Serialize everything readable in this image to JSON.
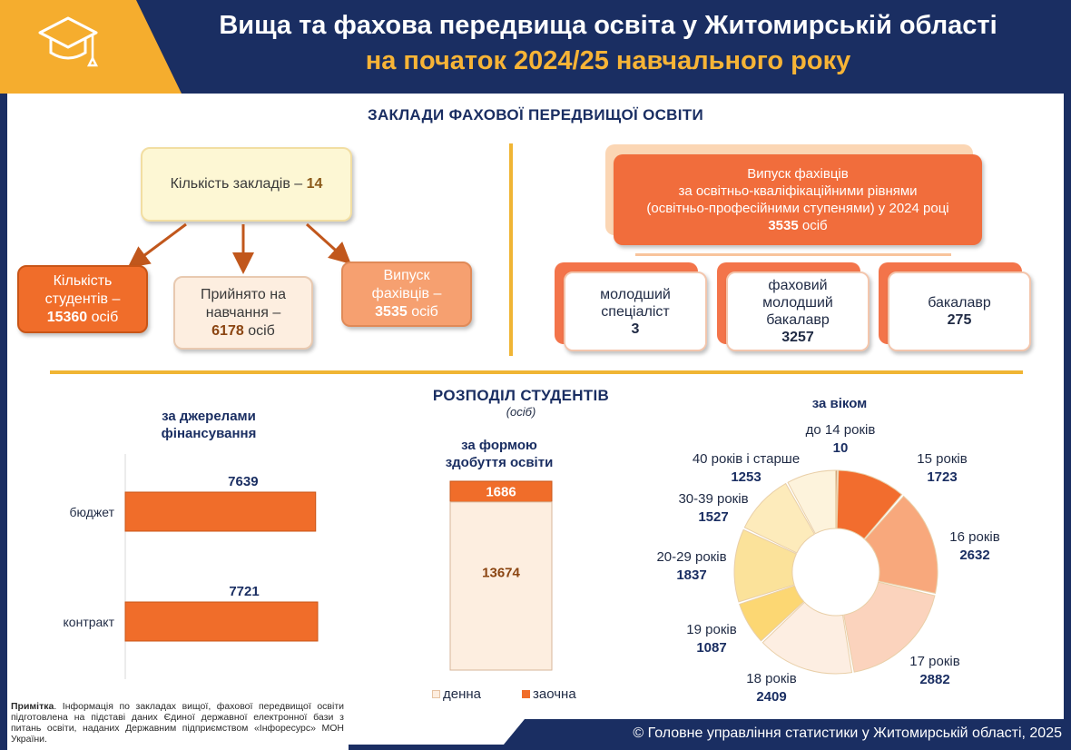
{
  "header": {
    "title_line1": "Вища та фахова передвища освіта у Житомирській області",
    "title_line2": "на початок 2024/25 навчального року",
    "logo_icon": "graduation-cap-icon"
  },
  "colors": {
    "navy": "#1a2e62",
    "gold": "#f5ad2e",
    "orange": "#f06d2a",
    "peach": "#f6a070",
    "cream": "#fdeee0"
  },
  "section1": {
    "title": "ЗАКЛАДИ ФАХОВОЇ ПЕРЕДВИЩОЇ ОСВІТИ",
    "institutions": {
      "label": "Кількість закладів –",
      "value": "14"
    },
    "students": {
      "label_line1": "Кількість",
      "label_line2": "студентів –",
      "value": "15360",
      "unit": "осіб"
    },
    "admitted": {
      "label_line1": "Прийнято на",
      "label_line2": "навчання –",
      "value": "6178",
      "unit": "осіб"
    },
    "graduates": {
      "label_line1": "Випуск",
      "label_line2": "фахівців –",
      "value": "3535",
      "unit": "осіб"
    },
    "graduates_detail": {
      "line1": "Випуск фахівців",
      "line2": "за освітньо-кваліфікаційними рівнями",
      "line3": "(освітньо-професійними ступенями) у 2024 році",
      "value": "3535",
      "unit": "осіб"
    },
    "levels": [
      {
        "line1": "молодший",
        "line2": "спеціаліст",
        "line3": "",
        "value": "3"
      },
      {
        "line1": "фаховий",
        "line2": "молодший",
        "line3": "бакалавр",
        "value": "3257"
      },
      {
        "line1": "бакалавр",
        "line2": "",
        "line3": "",
        "value": "275"
      }
    ]
  },
  "section2": {
    "title": "РОЗПОДІЛ СТУДЕНТІВ",
    "subtitle": "(осіб)"
  },
  "chart_data": [
    {
      "type": "bar",
      "orientation": "horizontal",
      "title_line1": "за джерелами",
      "title_line2": "фінансування",
      "categories": [
        "бюджет",
        "контракт"
      ],
      "values": [
        7639,
        7721
      ],
      "color": "#f06d2a"
    },
    {
      "type": "bar",
      "stacked": true,
      "title_line1": "за формою",
      "title_line2": "здобуття освіти",
      "series": [
        {
          "name": "денна",
          "values": [
            13674
          ],
          "color": "#fdeee0"
        },
        {
          "name": "заочна",
          "values": [
            1686
          ],
          "color": "#f06d2a"
        }
      ],
      "legend_position": "bottom"
    },
    {
      "type": "pie",
      "donut": true,
      "title": "за віком",
      "slices": [
        {
          "label": "до 14 років",
          "value": 10,
          "color": "#a6481a"
        },
        {
          "label": "15 років",
          "value": 1723,
          "color": "#f26d2e"
        },
        {
          "label": "16 років",
          "value": 2632,
          "color": "#f8a87c"
        },
        {
          "label": "17 років",
          "value": 2882,
          "color": "#fbd3bd"
        },
        {
          "label": "18 років",
          "value": 2409,
          "color": "#fdeee2"
        },
        {
          "label": "19 років",
          "value": 1087,
          "color": "#fcd773"
        },
        {
          "label": "20-29 років",
          "value": 1837,
          "color": "#fbe29a"
        },
        {
          "label": "30-39 років",
          "value": 1527,
          "color": "#fdebbb"
        },
        {
          "label": "40 років і старше",
          "value": 1253,
          "color": "#fdf3dc"
        }
      ]
    }
  ],
  "footer": {
    "note_label": "Примітка",
    "note_text": ". Інформація по закладах вищої, фахової передвищої освіти підготовлена на підставі даних Єдиної державної електронної бази з питань освіти, наданих Державним підприємством «Інфоресурс» МОН України.",
    "source": "© Головне управління статистики у Житомирській області, 2025"
  }
}
